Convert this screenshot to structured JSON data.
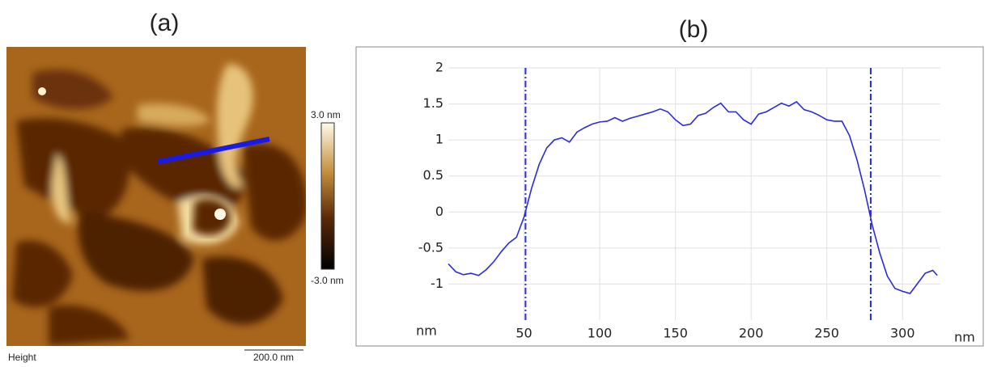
{
  "image_panel": {
    "title": "(a)",
    "colorbar_max_label": "3.0 nm",
    "colorbar_min_label": "-3.0 nm",
    "channel_label": "Height",
    "scale_bar_label": "200.0 nm"
  },
  "chart_data": {
    "type": "line",
    "title": "(b)",
    "x_label": "nm",
    "y_label": "nm",
    "x": [
      0,
      5,
      10,
      15,
      20,
      25,
      30,
      35,
      40,
      45,
      50,
      55,
      60,
      65,
      70,
      75,
      80,
      85,
      90,
      95,
      100,
      105,
      110,
      115,
      120,
      125,
      130,
      135,
      140,
      145,
      150,
      155,
      160,
      165,
      170,
      175,
      180,
      185,
      190,
      195,
      200,
      205,
      210,
      215,
      220,
      225,
      230,
      235,
      240,
      245,
      250,
      255,
      260,
      265,
      270,
      275,
      280,
      285,
      290,
      295,
      300,
      305,
      310,
      315,
      320,
      323
    ],
    "series": [
      {
        "color": "#2b2bd9",
        "values": [
          -0.72,
          -0.83,
          -0.87,
          -0.85,
          -0.88,
          -0.8,
          -0.69,
          -0.55,
          -0.43,
          -0.35,
          -0.07,
          0.33,
          0.66,
          0.89,
          1.0,
          1.03,
          0.97,
          1.11,
          1.17,
          1.22,
          1.25,
          1.26,
          1.31,
          1.26,
          1.3,
          1.33,
          1.36,
          1.39,
          1.43,
          1.39,
          1.28,
          1.2,
          1.22,
          1.34,
          1.37,
          1.45,
          1.51,
          1.39,
          1.39,
          1.28,
          1.22,
          1.36,
          1.39,
          1.45,
          1.51,
          1.47,
          1.53,
          1.42,
          1.39,
          1.34,
          1.28,
          1.26,
          1.26,
          1.06,
          0.72,
          0.3,
          -0.18,
          -0.57,
          -0.89,
          -1.06,
          -1.1,
          -1.13,
          -0.99,
          -0.85,
          -0.81,
          -0.88
        ]
      }
    ],
    "cursors": [
      51,
      279
    ],
    "cursor_color": "#2b2bd9",
    "xlim": [
      0,
      325
    ],
    "ylim": [
      -1.5,
      2
    ],
    "xticks": [
      50,
      100,
      150,
      200,
      250,
      300
    ],
    "yticks": [
      -1,
      -0.5,
      0,
      0.5,
      1,
      1.5,
      2
    ],
    "grid": true
  }
}
